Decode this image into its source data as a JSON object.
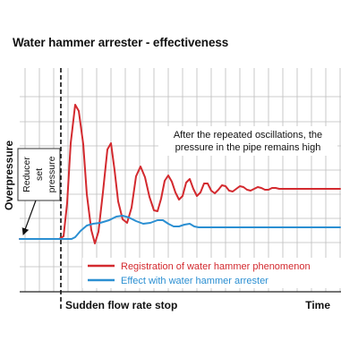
{
  "title": "Water hammer arrester - effectiveness",
  "chart_data": {
    "type": "line",
    "title": "Water hammer arrester - effectiveness",
    "ylabel": "Overpressure",
    "xlabel": "Time",
    "event_label": "Sudden flow rate stop",
    "annotations": {
      "reducer": [
        "Reducer",
        "set",
        "pressure"
      ],
      "oscillation_note": [
        "After the repeated oscillations, the",
        "pressure in the pipe remains high"
      ]
    },
    "grid": true,
    "legend_position": "bottom-right",
    "series": [
      {
        "name": "Registration of water hammer phenomenon",
        "color": "#d32a2f",
        "points": [
          [
            0,
            0
          ],
          [
            44,
            0
          ],
          [
            49,
            3
          ],
          [
            53,
            40
          ],
          [
            57,
            107
          ],
          [
            62,
            150
          ],
          [
            66,
            143
          ],
          [
            71,
            106
          ],
          [
            75,
            50
          ],
          [
            80,
            10
          ],
          [
            84,
            -5
          ],
          [
            88,
            8
          ],
          [
            93,
            52
          ],
          [
            98,
            100
          ],
          [
            102,
            107
          ],
          [
            106,
            77
          ],
          [
            110,
            42
          ],
          [
            115,
            22
          ],
          [
            120,
            18
          ],
          [
            125,
            35
          ],
          [
            130,
            70
          ],
          [
            135,
            81
          ],
          [
            140,
            69
          ],
          [
            145,
            47
          ],
          [
            150,
            32
          ],
          [
            154,
            31
          ],
          [
            158,
            45
          ],
          [
            162,
            65
          ],
          [
            166,
            71
          ],
          [
            170,
            64
          ],
          [
            174,
            52
          ],
          [
            178,
            44
          ],
          [
            182,
            48
          ],
          [
            186,
            63
          ],
          [
            190,
            67
          ],
          [
            194,
            56
          ],
          [
            198,
            48
          ],
          [
            202,
            52
          ],
          [
            206,
            62
          ],
          [
            210,
            62
          ],
          [
            214,
            54
          ],
          [
            218,
            51
          ],
          [
            222,
            55
          ],
          [
            226,
            60
          ],
          [
            230,
            59
          ],
          [
            234,
            54
          ],
          [
            238,
            53
          ],
          [
            242,
            56
          ],
          [
            246,
            59
          ],
          [
            250,
            58
          ],
          [
            254,
            55
          ],
          [
            258,
            54
          ],
          [
            262,
            56
          ],
          [
            266,
            58
          ],
          [
            270,
            57
          ],
          [
            274,
            55
          ],
          [
            278,
            55
          ],
          [
            282,
            57
          ],
          [
            286,
            57
          ],
          [
            290,
            56
          ],
          [
            293,
            56
          ],
          [
            300,
            56
          ],
          [
            358,
            56
          ]
        ]
      },
      {
        "name": "Effect with water hammer arrester",
        "color": "#2b8fd2",
        "points": [
          [
            0,
            0
          ],
          [
            58,
            0
          ],
          [
            62,
            2
          ],
          [
            68,
            9
          ],
          [
            75,
            15
          ],
          [
            82,
            17
          ],
          [
            90,
            18
          ],
          [
            100,
            21
          ],
          [
            108,
            25
          ],
          [
            115,
            26
          ],
          [
            122,
            24
          ],
          [
            130,
            20
          ],
          [
            138,
            17
          ],
          [
            146,
            18
          ],
          [
            154,
            21
          ],
          [
            160,
            21
          ],
          [
            166,
            17
          ],
          [
            172,
            14
          ],
          [
            178,
            14
          ],
          [
            184,
            16
          ],
          [
            190,
            17
          ],
          [
            195,
            14
          ],
          [
            200,
            13
          ],
          [
            358,
            13
          ]
        ]
      }
    ]
  }
}
